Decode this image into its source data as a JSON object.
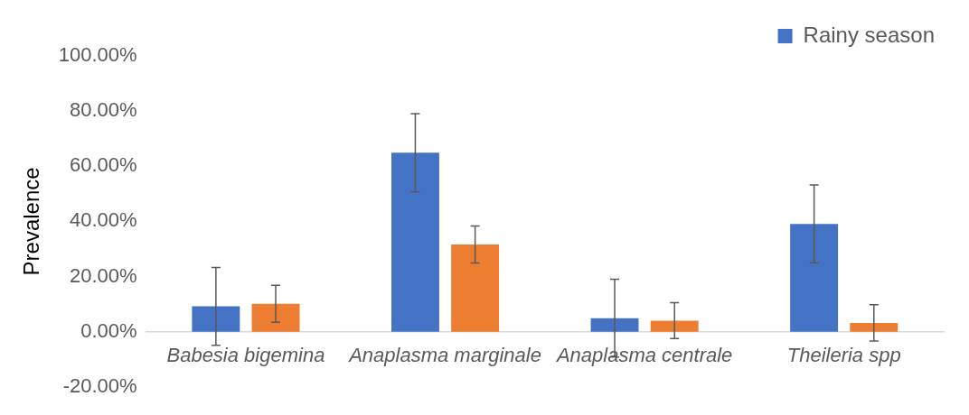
{
  "chart_data": {
    "type": "bar",
    "ylabel": "Prevalence",
    "categories": [
      "Babesia bigemina",
      "Anaplasma marginale",
      "Anaplasma centrale",
      "Theileria spp"
    ],
    "series": [
      {
        "name": "Rainy season",
        "color": "#4472c4",
        "values": [
          9.2,
          64.9,
          4.9,
          39.1
        ],
        "errors": [
          14.1,
          14.2,
          14.1,
          14.1
        ]
      },
      {
        "color": "#ed7d31",
        "values": [
          10.1,
          31.6,
          4.0,
          3.2
        ],
        "errors": [
          6.7,
          6.7,
          6.5,
          6.6
        ]
      }
    ],
    "ylim": [
      -20,
      100
    ],
    "yticks": [
      {
        "value": -20,
        "label": "-20.00%"
      },
      {
        "value": 0,
        "label": "0.00%"
      },
      {
        "value": 20,
        "label": "20.00%"
      },
      {
        "value": 40,
        "label": "40.00%"
      },
      {
        "value": 60,
        "label": "60.00%"
      },
      {
        "value": 80,
        "label": "80.00%"
      },
      {
        "value": 100,
        "label": "100.00%"
      }
    ],
    "grid": false,
    "legend": "top right"
  }
}
